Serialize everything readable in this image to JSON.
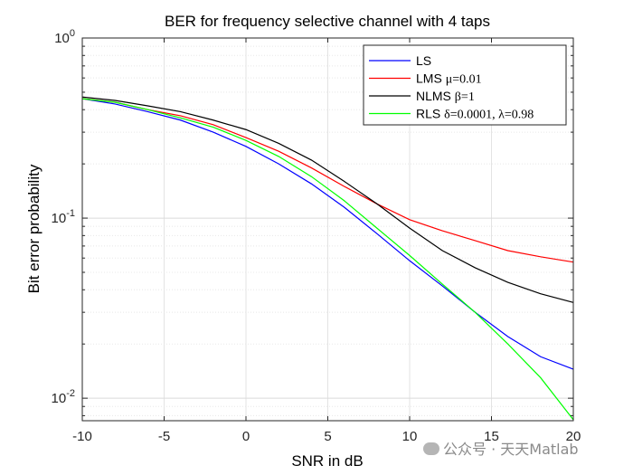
{
  "chart_data": {
    "type": "line",
    "title": "BER for frequency selective channel with 4 taps",
    "xlabel": "SNR in dB",
    "ylabel": "Bit error probability",
    "xlim": [
      -10,
      20
    ],
    "ylim": [
      0.0075,
      1
    ],
    "yscale": "log",
    "grid": true,
    "legend_position": "top-right",
    "xticks": [
      -10,
      -5,
      0,
      5,
      10,
      15,
      20
    ],
    "x": [
      -10,
      -8,
      -6,
      -4,
      -2,
      0,
      2,
      4,
      6,
      8,
      10,
      12,
      14,
      16,
      18,
      20
    ],
    "series": [
      {
        "name": "LS",
        "label_main": "LS",
        "label_sym": "",
        "color": "#0000ff",
        "values": [
          0.46,
          0.43,
          0.39,
          0.35,
          0.3,
          0.25,
          0.2,
          0.155,
          0.115,
          0.082,
          0.058,
          0.042,
          0.03,
          0.022,
          0.017,
          0.0145
        ]
      },
      {
        "name": "LMS",
        "label_main": "LMS ",
        "label_sym": "μ=0.01",
        "color": "#ff0000",
        "values": [
          0.46,
          0.44,
          0.4,
          0.37,
          0.33,
          0.28,
          0.235,
          0.19,
          0.15,
          0.12,
          0.098,
          0.085,
          0.075,
          0.066,
          0.061,
          0.057
        ]
      },
      {
        "name": "NLMS",
        "label_main": "NLMS ",
        "label_sym": "β=1",
        "color": "#000000",
        "values": [
          0.47,
          0.45,
          0.42,
          0.39,
          0.35,
          0.31,
          0.26,
          0.21,
          0.16,
          0.12,
          0.088,
          0.066,
          0.053,
          0.044,
          0.038,
          0.034
        ]
      },
      {
        "name": "RLS",
        "label_main": "RLS  ",
        "label_sym": "δ=0.0001, λ=0.98",
        "color": "#00ff00",
        "values": [
          0.46,
          0.44,
          0.4,
          0.36,
          0.32,
          0.27,
          0.22,
          0.17,
          0.125,
          0.088,
          0.062,
          0.043,
          0.03,
          0.02,
          0.013,
          0.0076
        ]
      }
    ]
  },
  "watermark": "公众号 · 天天Matlab"
}
